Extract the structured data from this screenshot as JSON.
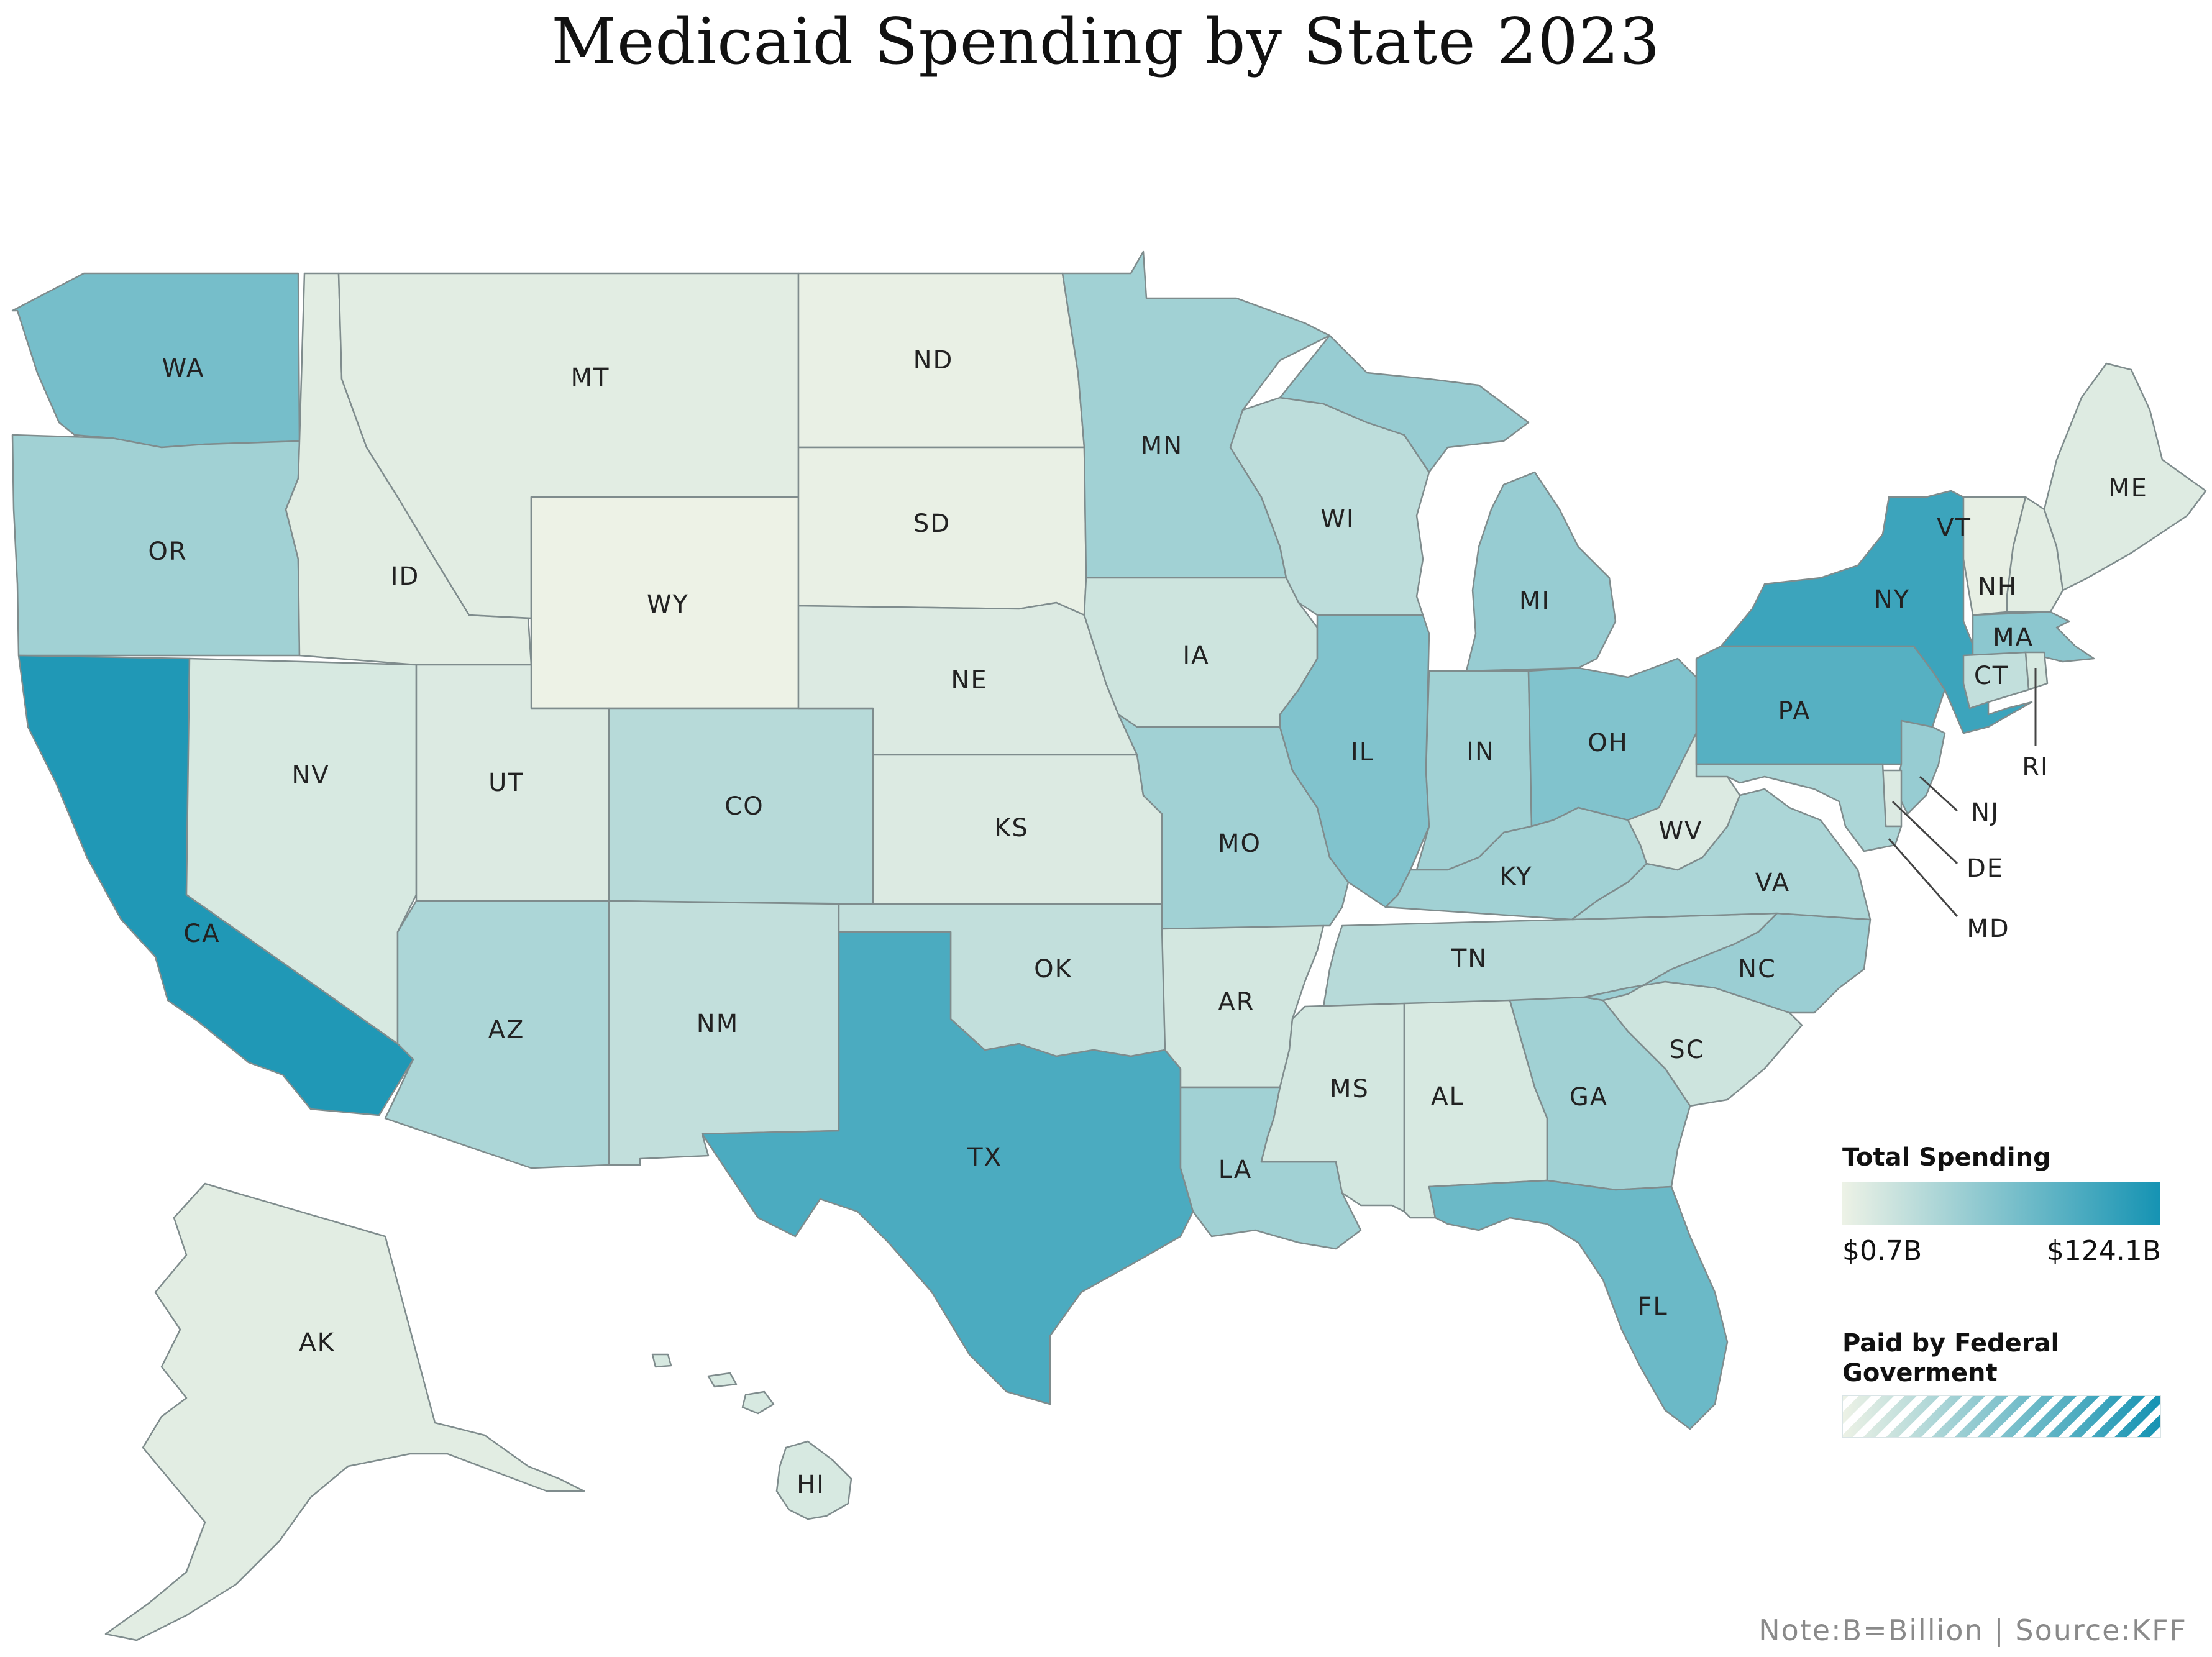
{
  "title": "Medicaid Spending by State 2023",
  "legend": {
    "total_title": "Total Spending",
    "min_label": "$0.7B",
    "max_label": "$124.1B",
    "federal_title_line1": "Paid by Federal",
    "federal_title_line2": "Goverment",
    "color_low": "#edf2e6",
    "color_high": "#1593b3"
  },
  "footnote": "Note:B=Billion | Source:KFF",
  "states": {
    "WA": "WA",
    "OR": "OR",
    "CA": "CA",
    "ID": "ID",
    "NV": "NV",
    "MT": "MT",
    "WY": "WY",
    "UT": "UT",
    "AZ": "AZ",
    "CO": "CO",
    "NM": "NM",
    "ND": "ND",
    "SD": "SD",
    "NE": "NE",
    "KS": "KS",
    "OK": "OK",
    "TX": "TX",
    "MN": "MN",
    "IA": "IA",
    "MO": "MO",
    "AR": "AR",
    "LA": "LA",
    "WI": "WI",
    "IL": "IL",
    "MI": "MI",
    "IN": "IN",
    "OH": "OH",
    "KY": "KY",
    "TN": "TN",
    "MS": "MS",
    "AL": "AL",
    "GA": "GA",
    "FL": "FL",
    "SC": "SC",
    "NC": "NC",
    "VA": "VA",
    "WV": "WV",
    "PA": "PA",
    "NY": "NY",
    "VT": "VT",
    "NH": "NH",
    "ME": "ME",
    "MA": "MA",
    "CT": "CT",
    "RI": "RI",
    "NJ": "NJ",
    "DE": "DE",
    "MD": "MD",
    "AK": "AK",
    "HI": "HI"
  },
  "state_shading": {
    "WA": 0.55,
    "OR": 0.35,
    "CA": 0.95,
    "ID": 0.05,
    "NV": 0.1,
    "MT": 0.05,
    "WY": 0.0,
    "UT": 0.08,
    "AZ": 0.3,
    "CO": 0.25,
    "NM": 0.2,
    "ND": 0.02,
    "SD": 0.02,
    "NE": 0.08,
    "KS": 0.08,
    "OK": 0.2,
    "TX": 0.75,
    "MN": 0.35,
    "IA": 0.15,
    "MO": 0.35,
    "AR": 0.12,
    "LA": 0.35,
    "WI": 0.22,
    "IL": 0.5,
    "MI": 0.4,
    "IN": 0.35,
    "OH": 0.5,
    "KY": 0.35,
    "TN": 0.25,
    "MS": 0.12,
    "AL": 0.1,
    "GA": 0.35,
    "FL": 0.6,
    "SC": 0.15,
    "NC": 0.38,
    "VA": 0.3,
    "WV": 0.08,
    "PA": 0.7,
    "NY": 0.82,
    "VT": 0.03,
    "NH": 0.05,
    "ME": 0.07,
    "MA": 0.45,
    "CT": 0.2,
    "RI": 0.1,
    "NJ": 0.4,
    "DE": 0.08,
    "MD": 0.3,
    "AK": 0.05,
    "HI": 0.1
  }
}
